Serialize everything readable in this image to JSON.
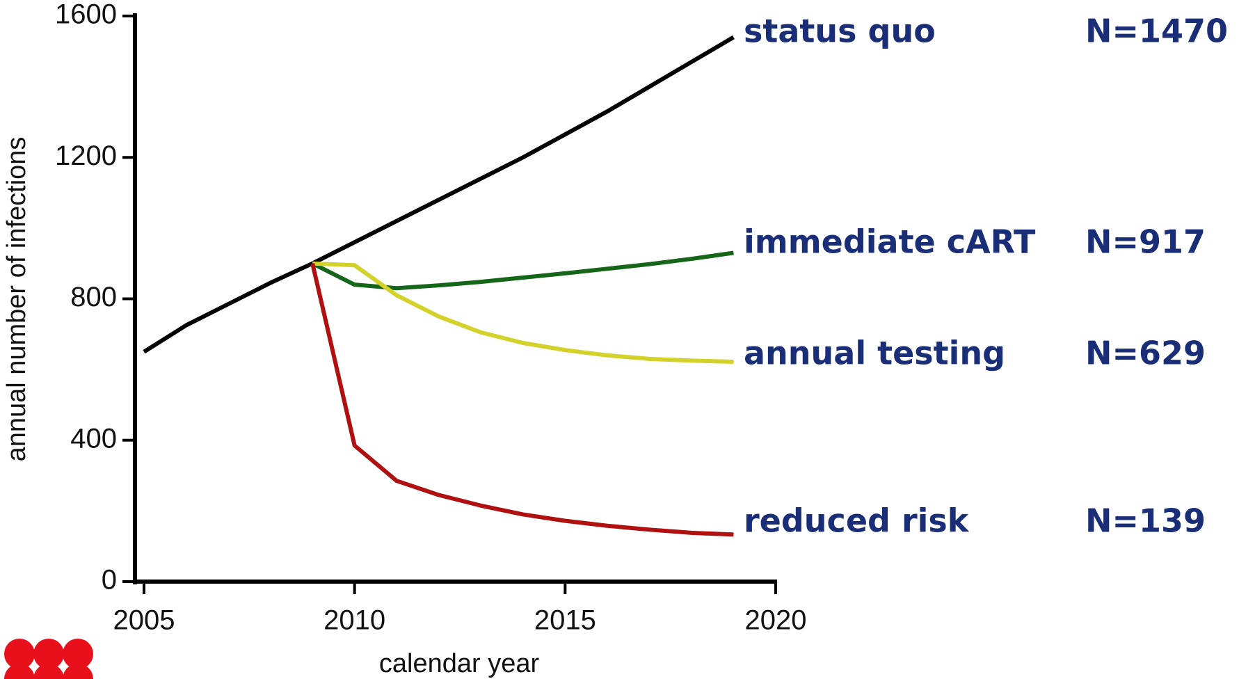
{
  "chart_data": {
    "type": "line",
    "x_label": "calendar year",
    "y_label": "annual number of infections",
    "x": [
      2005,
      2006,
      2007,
      2008,
      2009,
      2010,
      2011,
      2012,
      2013,
      2014,
      2015,
      2016,
      2017,
      2018,
      2019
    ],
    "xlim": [
      2005,
      2020
    ],
    "xticks": [
      2005,
      2010,
      2015,
      2020
    ],
    "ylim": [
      0,
      1600
    ],
    "yticks": [
      0,
      400,
      800,
      1200,
      1600
    ],
    "series": [
      {
        "name": "status quo",
        "label": "N=1470",
        "color": "#000000",
        "values": [
          650,
          725,
          785,
          845,
          900,
          960,
          1020,
          1080,
          1140,
          1200,
          1265,
          1330,
          1400,
          1470,
          1540
        ]
      },
      {
        "name": "immediate cART",
        "label": "N=917",
        "color": "#16661a",
        "values": [
          null,
          null,
          null,
          null,
          900,
          840,
          830,
          838,
          848,
          860,
          872,
          885,
          898,
          913,
          930
        ]
      },
      {
        "name": "annual testing",
        "label": "N=629",
        "color": "#d2d22a",
        "values": [
          null,
          null,
          null,
          null,
          900,
          895,
          810,
          750,
          705,
          675,
          655,
          640,
          630,
          625,
          622
        ]
      },
      {
        "name": "reduced risk",
        "label": "N=139",
        "color": "#b01010",
        "values": [
          null,
          null,
          null,
          null,
          900,
          385,
          285,
          245,
          215,
          190,
          172,
          158,
          147,
          138,
          133
        ]
      }
    ]
  }
}
